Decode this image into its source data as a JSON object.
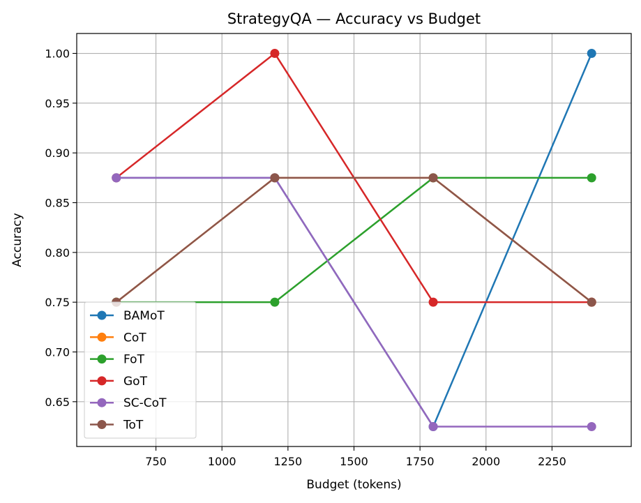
{
  "chart_data": {
    "type": "line",
    "title": "StrategyQA — Accuracy vs Budget",
    "xlabel": "Budget (tokens)",
    "ylabel": "Accuracy",
    "x": [
      600,
      1200,
      1800,
      2400
    ],
    "xlim": [
      450,
      2550
    ],
    "ylim": [
      0.605,
      1.02
    ],
    "xticks": [
      750,
      1000,
      1250,
      1500,
      1750,
      2000,
      2250
    ],
    "xtick_labels": [
      "750",
      "1000",
      "1250",
      "1500",
      "1750",
      "2000",
      "2250"
    ],
    "yticks": [
      0.65,
      0.7,
      0.75,
      0.8,
      0.85,
      0.9,
      0.95,
      1.0
    ],
    "ytick_labels": [
      "0.65",
      "0.70",
      "0.75",
      "0.80",
      "0.85",
      "0.90",
      "0.95",
      "1.00"
    ],
    "grid": true,
    "legend_position": "lower-left",
    "series": [
      {
        "name": "BAMoT",
        "color": "#1f77b4",
        "values": [
          0.875,
          0.875,
          0.625,
          1.0
        ]
      },
      {
        "name": "CoT",
        "color": "#ff7f0e",
        "values": [
          0.75,
          0.875,
          0.875,
          0.75
        ]
      },
      {
        "name": "FoT",
        "color": "#2ca02c",
        "values": [
          0.75,
          0.75,
          0.875,
          0.875
        ]
      },
      {
        "name": "GoT",
        "color": "#d62728",
        "values": [
          0.875,
          1.0,
          0.75,
          0.75
        ]
      },
      {
        "name": "SC-CoT",
        "color": "#9467bd",
        "values": [
          0.875,
          0.875,
          0.625,
          0.625
        ]
      },
      {
        "name": "ToT",
        "color": "#8c564b",
        "values": [
          0.75,
          0.875,
          0.875,
          0.75
        ]
      }
    ]
  }
}
